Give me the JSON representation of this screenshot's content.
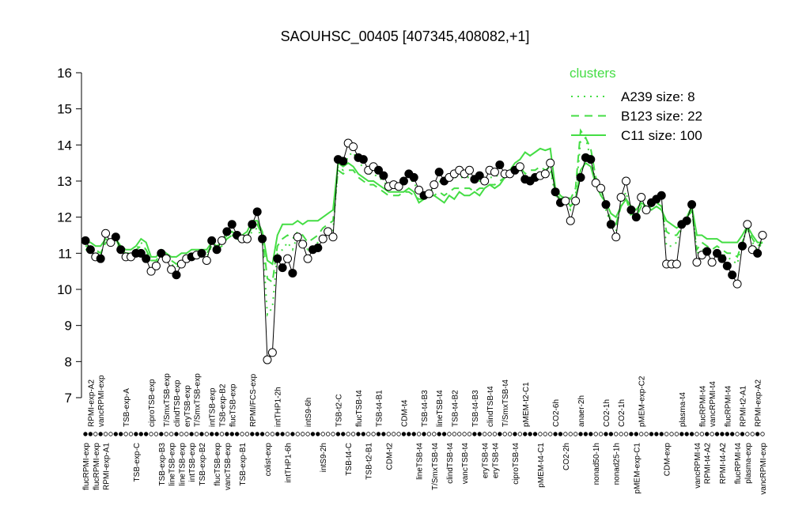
{
  "chart_data": {
    "type": "line",
    "title": "SAOUHSC_00405 [407345,408082,+1]",
    "ylim": [
      7,
      16
    ],
    "yticks": [
      7,
      8,
      9,
      10,
      11,
      12,
      13,
      14,
      15,
      16
    ],
    "categories": [
      "flucRPMI-exp",
      "RPMI-exp-A2",
      "flucRPMI-exp",
      "vancRPMI-exp",
      "RPMI-exp-A1",
      null,
      null,
      null,
      "TSB-exp-A",
      null,
      "TSB-exp-C",
      null,
      null,
      "ciproTSB-exp",
      null,
      "TSB-exp-B3",
      "T/SmxTSB-exp",
      "lineTSB-exp",
      "clindTSB-exp",
      "lineTSB-exp",
      "eryTSB-exp",
      "intTSB-exp",
      "T/SmxTSB-exp",
      "TSB-exp-B2",
      null,
      "intTSB-exp",
      "flucTSB-exp",
      "TSB-exp-B2",
      "vancTSB-exp",
      "flucTSB-exp",
      null,
      "TSB-exp-B1",
      null,
      "RPMI/FCS-exp",
      null,
      null,
      "colist-exp",
      null,
      "intTHP1-2h",
      null,
      "intTHP1-6h",
      null,
      null,
      null,
      "intS9-6h",
      null,
      null,
      "intS9-2h",
      null,
      null,
      "TSB-t2-C",
      null,
      "TSB-t4-C",
      null,
      "flucTSB-t4",
      null,
      "TSB-t2-B1",
      null,
      "TSB-t4-B1",
      null,
      "CDM-t2",
      null,
      null,
      "CDM-t4",
      null,
      null,
      "lineTSB-t4",
      "TSB-t4-B3",
      null,
      "T/SmxTSB-t4",
      "lineTSB-t4",
      null,
      "clindTSB-t4",
      "TSB-t4-B2",
      null,
      "vancTSB-t4",
      null,
      "TSB-t4-B3",
      null,
      "eryTSB-t4",
      "clindTSB-t4",
      "eryTSB-t4",
      null,
      "T/SmxTSB-t4",
      null,
      "ciproTSB-t4",
      null,
      "pMEM-t2-C1",
      null,
      null,
      "pMEM-t4-C1",
      null,
      null,
      "CO2-6h",
      null,
      "CO2-2h",
      null,
      null,
      "anaer-2h",
      null,
      null,
      "nonad50-1h",
      null,
      "CO2-1h",
      null,
      "nonad25-1h",
      "CO2-1h",
      null,
      null,
      "pMEM-exp-C1",
      "pMEM-exp-C2",
      null,
      null,
      null,
      null,
      "CDM-exp",
      null,
      null,
      "plasma-t4",
      null,
      null,
      "vancRPMI-t4",
      "flucRPMI-t4",
      "RPMI-t4-A2",
      "vancRPMI-t4",
      null,
      "RPMI-t4-A2",
      "flucRPMI-t4",
      null,
      "flucRPMI-t4",
      "RPMI-t2-A1",
      "plasma-exp",
      null,
      "RPMI-exp-A2",
      "vancRPMI-exp"
    ],
    "values": [
      11.35,
      11.1,
      10.9,
      10.85,
      11.55,
      11.3,
      11.45,
      11.1,
      10.9,
      10.9,
      11.0,
      11.0,
      10.85,
      10.5,
      10.65,
      11.0,
      10.85,
      10.55,
      10.4,
      10.7,
      10.85,
      10.9,
      10.95,
      11.0,
      10.8,
      11.35,
      11.1,
      11.35,
      11.6,
      11.8,
      11.5,
      11.4,
      11.4,
      11.8,
      12.15,
      11.4,
      8.05,
      8.25,
      10.85,
      10.6,
      10.85,
      10.45,
      11.45,
      11.25,
      10.85,
      11.1,
      11.15,
      11.4,
      11.6,
      11.45,
      13.6,
      13.55,
      14.05,
      13.95,
      13.65,
      13.6,
      13.3,
      13.4,
      13.3,
      13.15,
      12.85,
      12.9,
      12.85,
      13.0,
      13.2,
      13.1,
      12.75,
      12.6,
      12.65,
      12.9,
      13.25,
      13.0,
      13.1,
      13.2,
      13.3,
      13.2,
      13.3,
      13.05,
      13.15,
      13.0,
      13.3,
      13.25,
      13.45,
      13.2,
      13.2,
      13.3,
      13.4,
      13.05,
      13.0,
      13.1,
      13.15,
      13.2,
      13.5,
      12.7,
      12.4,
      12.45,
      11.9,
      12.45,
      13.1,
      13.65,
      13.6,
      12.95,
      12.8,
      12.35,
      11.8,
      11.45,
      12.55,
      13.0,
      12.2,
      12.0,
      12.55,
      12.2,
      12.4,
      12.5,
      12.6,
      10.7,
      10.7,
      10.7,
      11.8,
      11.9,
      12.35,
      10.75,
      10.95,
      11.05,
      10.75,
      11.0,
      10.85,
      10.65,
      10.4,
      10.15,
      11.2,
      11.8,
      11.1,
      11.0,
      11.5
    ],
    "point_fill": [
      "#000",
      "#000",
      "#fff",
      "#000",
      "#fff",
      "#fff",
      "#000",
      "#000",
      "#fff",
      "#fff",
      "#000",
      "#000",
      "#000",
      "#fff",
      "#fff",
      "#000",
      "#fff",
      "#fff",
      "#000",
      "#fff",
      "#fff",
      "#000",
      "#fff",
      "#000",
      "#fff",
      "#000",
      "#000",
      "#fff",
      "#000",
      "#000",
      "#000",
      "#fff",
      "#fff",
      "#000",
      "#000",
      "#000",
      "#fff",
      "#fff",
      "#000",
      "#000",
      "#fff",
      "#000",
      "#fff",
      "#fff",
      "#fff",
      "#000",
      "#000",
      "#fff",
      "#fff",
      "#fff",
      "#000",
      "#000",
      "#fff",
      "#fff",
      "#000",
      "#000",
      "#fff",
      "#fff",
      "#000",
      "#000",
      "#fff",
      "#fff",
      "#fff",
      "#000",
      "#000",
      "#000",
      "#fff",
      "#000",
      "#fff",
      "#fff",
      "#000",
      "#000",
      "#fff",
      "#fff",
      "#fff",
      "#fff",
      "#fff",
      "#000",
      "#000",
      "#fff",
      "#fff",
      "#fff",
      "#000",
      "#fff",
      "#fff",
      "#000",
      "#fff",
      "#000",
      "#000",
      "#000",
      "#fff",
      "#fff",
      "#fff",
      "#000",
      "#000",
      "#fff",
      "#fff",
      "#fff",
      "#000",
      "#000",
      "#000",
      "#fff",
      "#fff",
      "#000",
      "#000",
      "#fff",
      "#fff",
      "#fff",
      "#000",
      "#000",
      "#fff",
      "#fff",
      "#000",
      "#000",
      "#000",
      "#fff",
      "#fff",
      "#fff",
      "#000",
      "#000",
      "#000",
      "#fff",
      "#fff",
      "#000",
      "#fff",
      "#000",
      "#000",
      "#000",
      "#000",
      "#fff",
      "#000",
      "#fff",
      "#fff",
      "#000",
      "#fff"
    ],
    "legend_title": "clusters",
    "legend_color": "#44dd44",
    "series": [
      {
        "name": "A239 size: 8",
        "color": "#44dd44",
        "linestyle": "dotted",
        "values": [
          11.1,
          11.1,
          11.0,
          11.0,
          11.3,
          11.2,
          11.3,
          11.1,
          11.0,
          11.0,
          11.1,
          11.3,
          11.1,
          10.7,
          10.7,
          11.0,
          10.9,
          10.7,
          10.6,
          10.8,
          10.9,
          10.9,
          11.0,
          11.0,
          10.9,
          11.2,
          11.1,
          11.2,
          11.4,
          11.5,
          11.4,
          11.3,
          11.4,
          11.6,
          11.7,
          11.4,
          9.3,
          9.5,
          11.0,
          11.1,
          11.3,
          11.1,
          11.5,
          11.3,
          11.1,
          11.2,
          11.3,
          11.5,
          11.7,
          11.6,
          13.4,
          13.3,
          13.7,
          13.8,
          13.5,
          13.4,
          13.2,
          13.2,
          13.1,
          13.0,
          12.8,
          12.8,
          12.8,
          12.9,
          13.0,
          13.0,
          12.6,
          12.6,
          12.7,
          12.8,
          13.0,
          12.9,
          13.0,
          13.1,
          13.1,
          13.1,
          13.1,
          13.0,
          13.0,
          13.0,
          13.1,
          13.1,
          13.2,
          13.2,
          13.2,
          13.3,
          13.3,
          13.1,
          13.1,
          13.2,
          13.2,
          13.2,
          13.3,
          12.6,
          12.5,
          12.4,
          12.2,
          12.6,
          14.1,
          14.2,
          13.6,
          13.0,
          12.7,
          12.2,
          11.8,
          11.6,
          12.4,
          12.7,
          12.0,
          11.9,
          12.4,
          12.2,
          12.3,
          12.4,
          12.4,
          11.2,
          11.2,
          11.3,
          11.7,
          11.9,
          12.3,
          11.0,
          11.1,
          11.1,
          11.0,
          11.1,
          11.0,
          10.9,
          10.8,
          10.7,
          11.3,
          11.7,
          11.3,
          11.1,
          11.3
        ]
      },
      {
        "name": "B123 size: 22",
        "color": "#44dd44",
        "linestyle": "dashed",
        "values": [
          11.2,
          11.2,
          11.1,
          11.0,
          11.3,
          11.3,
          11.4,
          11.1,
          11.0,
          11.0,
          11.1,
          11.2,
          11.1,
          10.8,
          10.8,
          11.0,
          10.9,
          10.8,
          10.7,
          10.8,
          10.9,
          10.9,
          11.0,
          11.0,
          11.0,
          11.2,
          11.1,
          11.2,
          11.4,
          11.5,
          11.4,
          11.4,
          11.5,
          11.7,
          11.8,
          11.5,
          10.3,
          10.2,
          11.2,
          11.4,
          11.5,
          11.4,
          11.6,
          11.5,
          11.3,
          11.4,
          11.5,
          11.7,
          11.8,
          11.9,
          13.3,
          13.2,
          13.3,
          13.3,
          13.1,
          13.0,
          12.9,
          12.9,
          12.8,
          12.7,
          12.6,
          12.6,
          12.6,
          12.7,
          12.7,
          12.6,
          12.5,
          12.5,
          12.6,
          12.6,
          12.7,
          12.6,
          12.7,
          12.8,
          12.8,
          12.8,
          12.8,
          12.7,
          12.8,
          12.8,
          12.9,
          12.9,
          13.0,
          13.1,
          13.2,
          13.3,
          13.4,
          13.2,
          13.3,
          13.3,
          13.4,
          13.3,
          13.4,
          12.7,
          12.5,
          12.6,
          12.5,
          12.8,
          14.4,
          14.2,
          13.9,
          13.1,
          12.8,
          12.3,
          11.9,
          11.8,
          12.3,
          12.5,
          12.1,
          12.0,
          12.3,
          12.2,
          12.3,
          12.4,
          12.3,
          11.6,
          11.5,
          11.5,
          11.7,
          11.9,
          12.2,
          11.1,
          11.3,
          11.2,
          11.1,
          11.2,
          11.1,
          11.0,
          11.0,
          10.9,
          11.3,
          11.7,
          11.4,
          11.2,
          11.3
        ]
      },
      {
        "name": "C11 size: 100",
        "color": "#44dd44",
        "linestyle": "solid",
        "values": [
          11.3,
          11.3,
          11.2,
          11.2,
          11.4,
          11.3,
          11.4,
          11.2,
          11.1,
          11.1,
          11.2,
          11.4,
          11.3,
          10.9,
          10.9,
          11.1,
          11.0,
          10.9,
          10.9,
          11.0,
          11.0,
          11.1,
          11.1,
          11.1,
          11.1,
          11.3,
          11.2,
          11.3,
          11.5,
          11.6,
          11.5,
          11.5,
          11.6,
          11.9,
          11.9,
          11.6,
          10.8,
          10.7,
          11.5,
          11.8,
          11.8,
          11.8,
          11.9,
          11.8,
          11.9,
          11.9,
          11.9,
          12.0,
          12.1,
          12.2,
          13.5,
          13.4,
          13.5,
          13.4,
          13.2,
          13.1,
          13.0,
          13.0,
          12.9,
          12.8,
          12.7,
          12.7,
          12.7,
          12.7,
          12.8,
          12.7,
          12.4,
          12.5,
          12.6,
          12.6,
          12.5,
          12.4,
          12.6,
          12.5,
          12.7,
          12.6,
          12.6,
          12.7,
          12.6,
          12.8,
          12.9,
          12.8,
          12.9,
          13.1,
          13.3,
          13.5,
          13.6,
          13.8,
          13.7,
          13.8,
          13.9,
          13.85,
          13.9,
          12.8,
          12.6,
          12.5,
          12.3,
          12.5,
          13.3,
          13.5,
          13.4,
          12.9,
          12.6,
          12.4,
          12.1,
          12.0,
          12.3,
          12.5,
          12.3,
          12.2,
          12.4,
          12.3,
          12.2,
          12.3,
          12.2,
          11.9,
          11.8,
          11.7,
          11.8,
          12.0,
          12.3,
          11.5,
          11.5,
          11.4,
          11.4,
          11.4,
          11.3,
          11.3,
          11.3,
          11.3,
          11.5,
          11.75,
          11.5,
          11.3,
          11.3
        ]
      }
    ]
  }
}
